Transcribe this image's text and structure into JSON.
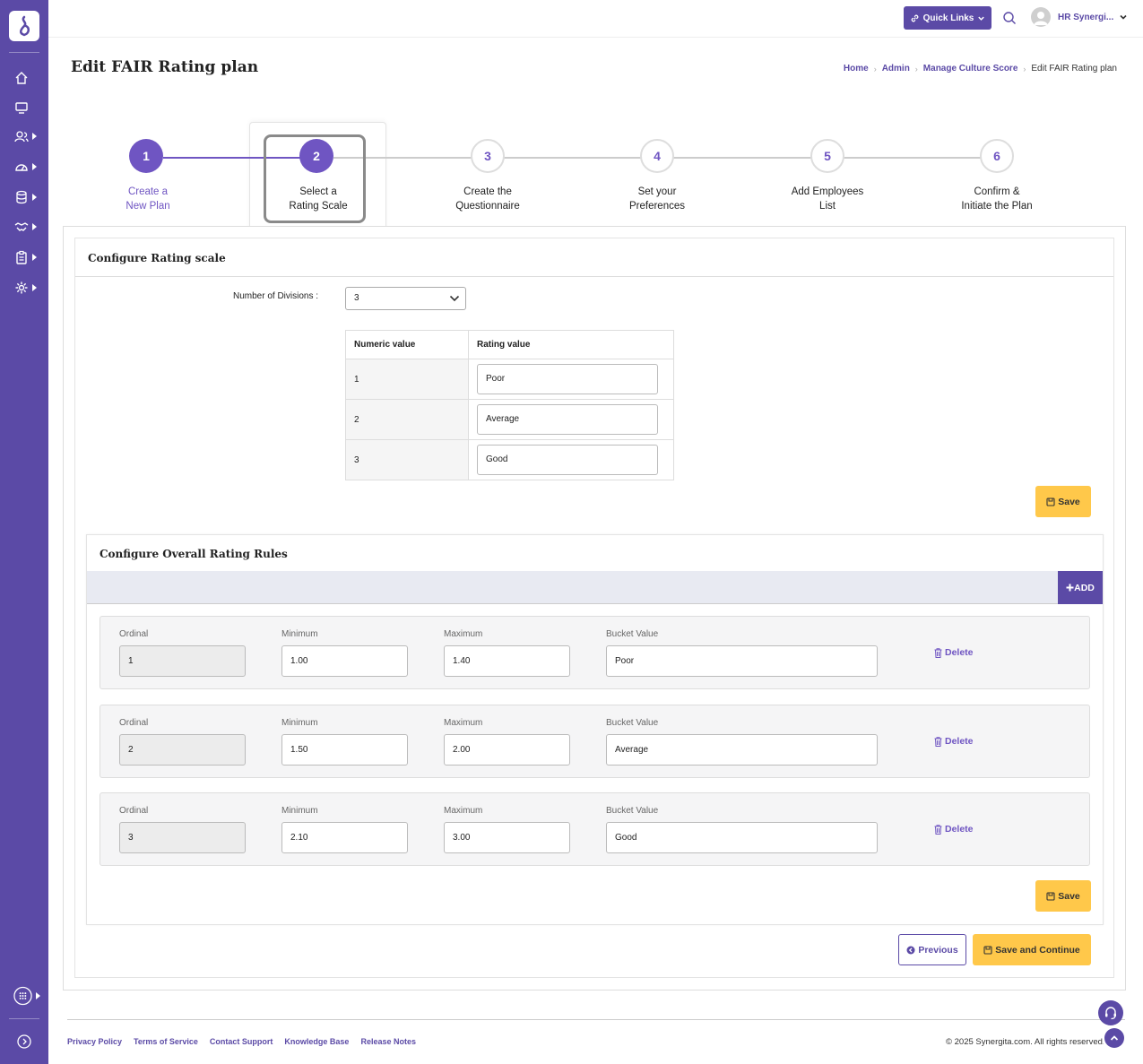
{
  "app": {
    "accent": "#5b4aa6",
    "highlight": "#ffc84a"
  },
  "sidebar": {
    "icons": [
      "home-icon",
      "monitor-icon",
      "users-icon",
      "dashboard-gauge-icon",
      "database-icon",
      "handshake-icon",
      "clipboard-icon",
      "settings-cog-icon"
    ],
    "bottom_icons": [
      "apps-grid-icon",
      "expand-circle-icon"
    ]
  },
  "topbar": {
    "quick_links": "Quick Links",
    "user_name": "HR Synergi..."
  },
  "page": {
    "title": "Edit FAIR Rating plan"
  },
  "breadcrumb": {
    "home": "Home",
    "admin": "Admin",
    "manage": "Manage Culture Score",
    "current": "Edit FAIR Rating plan"
  },
  "steps": [
    {
      "number": "1",
      "line1": "Create a",
      "line2": "New Plan"
    },
    {
      "number": "2",
      "line1": "Select a",
      "line2": "Rating Scale"
    },
    {
      "number": "3",
      "line1": "Create the",
      "line2": "Questionnaire"
    },
    {
      "number": "4",
      "line1": "Set your",
      "line2": "Preferences"
    },
    {
      "number": "5",
      "line1": "Add Employees",
      "line2": "List"
    },
    {
      "number": "6",
      "line1": "Confirm &",
      "line2": "Initiate the Plan"
    }
  ],
  "rating_scale": {
    "heading": "Configure Rating scale",
    "divisions_label": "Number of Divisions :",
    "divisions_value": "3",
    "col_numeric": "Numeric value",
    "col_rating": "Rating value",
    "rows": [
      {
        "numeric": "1",
        "rating": "Poor"
      },
      {
        "numeric": "2",
        "rating": "Average"
      },
      {
        "numeric": "3",
        "rating": "Good"
      }
    ],
    "save": "Save"
  },
  "rules": {
    "heading": "Configure Overall Rating Rules",
    "add": "ADD",
    "labels": {
      "ordinal": "Ordinal",
      "minimum": "Minimum",
      "maximum": "Maximum",
      "bucket": "Bucket Value",
      "delete": "Delete"
    },
    "rows": [
      {
        "ordinal": "1",
        "minimum": "1.00",
        "maximum": "1.40",
        "bucket": "Poor"
      },
      {
        "ordinal": "2",
        "minimum": "1.50",
        "maximum": "2.00",
        "bucket": "Average"
      },
      {
        "ordinal": "3",
        "minimum": "2.10",
        "maximum": "3.00",
        "bucket": "Good"
      }
    ],
    "save": "Save"
  },
  "actions": {
    "previous": "Previous",
    "save_continue": "Save and Continue"
  },
  "footer": {
    "links": [
      "Privacy Policy",
      "Terms of Service",
      "Contact Support",
      "Knowledge Base",
      "Release Notes"
    ],
    "copyright": "© 2025 Synergita.com. All rights reserved."
  }
}
